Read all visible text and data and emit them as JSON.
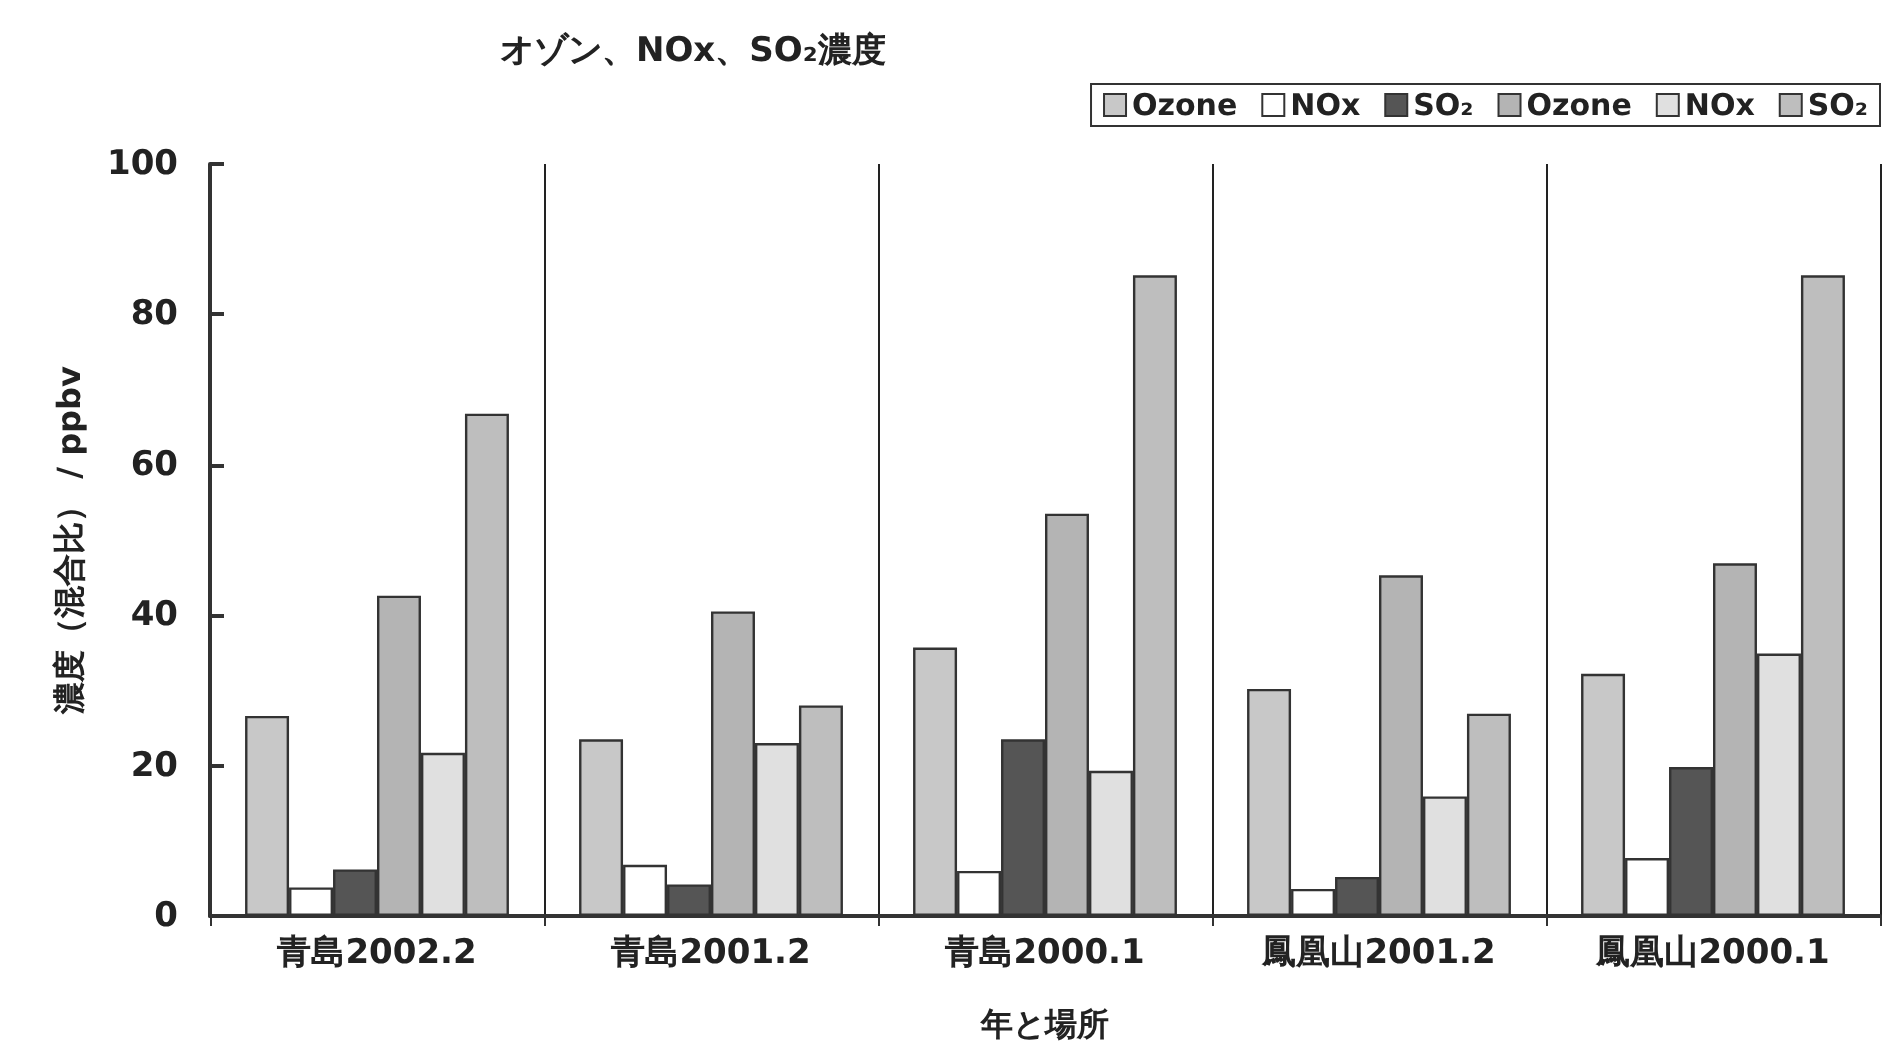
{
  "chart_data": {
    "type": "bar",
    "title": "オゾン、NOx、SO₂濃度",
    "xlabel": "年と場所",
    "ylabel": "濃度（混合比） / ppbv",
    "categories": [
      "青島2002.2",
      "青島2001.2",
      "青島2000.1",
      "鳳凰山2001.2",
      "鳳凰山2000.1"
    ],
    "series": [
      {
        "name": "Ozone",
        "color": "#c8c8c8",
        "values": [
          26.6,
          23.5,
          35.7,
          30.2,
          32.2
        ]
      },
      {
        "name": "NOx",
        "color": "#ffffff",
        "values": [
          3.8,
          6.8,
          6.0,
          3.6,
          7.7
        ]
      },
      {
        "name": "SO₂",
        "color": "#555555",
        "values": [
          6.2,
          4.2,
          23.5,
          5.2,
          19.8
        ]
      },
      {
        "name": "Ozone",
        "color": "#b4b4b4",
        "values": [
          42.6,
          40.5,
          53.5,
          45.3,
          46.9
        ]
      },
      {
        "name": "NOx",
        "color": "#e0e0e0",
        "values": [
          21.7,
          23.0,
          19.3,
          15.9,
          34.9
        ]
      },
      {
        "name": "SO₂",
        "color": "#bebebe",
        "values": [
          66.8,
          28.0,
          85.2,
          26.9,
          85.2
        ]
      }
    ],
    "ylim": [
      0,
      100
    ],
    "yticks": [
      0,
      20,
      40,
      60,
      80,
      100
    ],
    "grid": "x",
    "legend": "top right"
  }
}
